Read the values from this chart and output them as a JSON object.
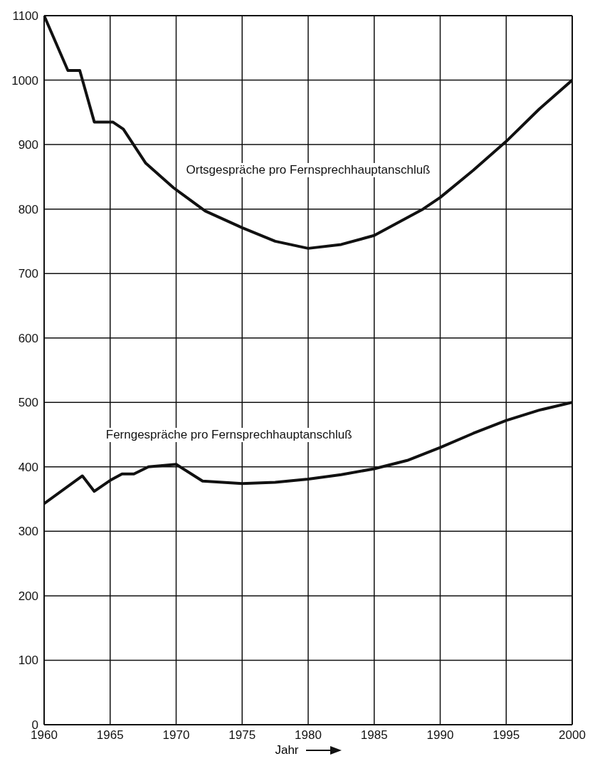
{
  "chart_data": {
    "type": "line",
    "xlabel": "Jahr",
    "xlim": [
      1960,
      2000
    ],
    "xticks": [
      1960,
      1965,
      1970,
      1975,
      1980,
      1985,
      1990,
      1995,
      2000
    ],
    "ylim": [
      0,
      1100
    ],
    "yticks": [
      0,
      100,
      200,
      300,
      400,
      500,
      600,
      700,
      800,
      900,
      1000,
      1100
    ],
    "grid": true,
    "marker": "none",
    "line_style": "solid",
    "series": [
      {
        "name": "Ortsgespräche pro Fernsprechhauptanschluß",
        "color": "#111111",
        "x": [
          1960,
          1961.8,
          1962.7,
          1963.8,
          1965.2,
          1966,
          1967.7,
          1969.8,
          1972.2,
          1975,
          1977.5,
          1980,
          1982.5,
          1985,
          1988.7,
          1990,
          1992.5,
          1995,
          1997.5,
          2000
        ],
        "values": [
          1100,
          1015,
          1015,
          935,
          935,
          924,
          871,
          833,
          797,
          771,
          750,
          739,
          745,
          759,
          800,
          818,
          860,
          905,
          955,
          1000
        ]
      },
      {
        "name": "Ferngespräche pro Fernsprechhauptanschluß",
        "color": "#111111",
        "x": [
          1960,
          1962.9,
          1963.8,
          1965,
          1965.9,
          1966.8,
          1967.9,
          1970,
          1972,
          1975,
          1977.5,
          1980,
          1982.5,
          1985,
          1987.5,
          1990,
          1992.5,
          1995,
          1997.5,
          2000
        ],
        "values": [
          343,
          386,
          362,
          379,
          389,
          389,
          400,
          404,
          378,
          374,
          376,
          381,
          388,
          397,
          410,
          430,
          452,
          472,
          488,
          500
        ]
      }
    ]
  }
}
